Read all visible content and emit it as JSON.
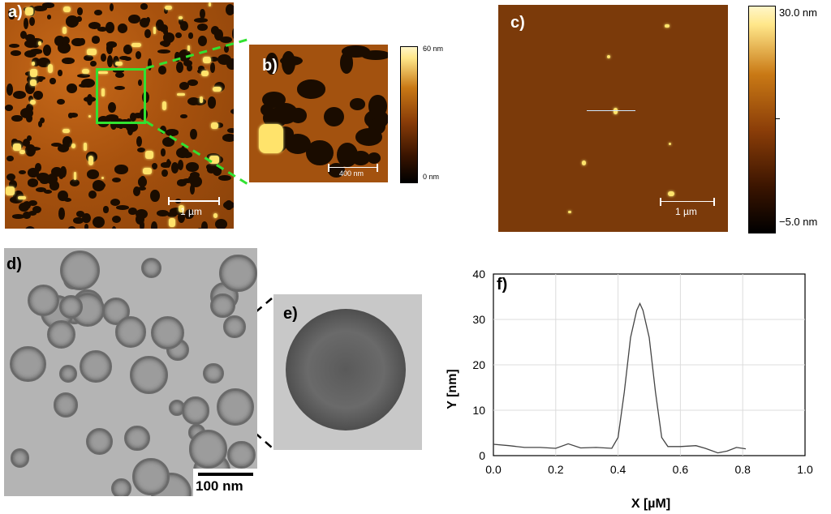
{
  "panels": {
    "a": {
      "label": "a)",
      "scale_label": "1 µm"
    },
    "b": {
      "label": "b)",
      "scale_label": "400 nm",
      "colorbar_max": "60 nm",
      "colorbar_min": "0 nm"
    },
    "c": {
      "label": "c)",
      "scale_label": "1 µm",
      "colorbar_max": "30.0 nm",
      "colorbar_min": "−5.0 nm"
    },
    "d": {
      "label": "d)",
      "scale_label": "100 nm"
    },
    "e": {
      "label": "e)"
    },
    "f": {
      "label": "f)"
    }
  },
  "chart_data": {
    "type": "line",
    "title": "",
    "xlabel": "X [µM]",
    "ylabel": "Y [nm]",
    "xlim": [
      0.0,
      1.0
    ],
    "ylim": [
      0,
      40
    ],
    "xticks": [
      "0.0",
      "0.2",
      "0.4",
      "0.6",
      "0.8",
      "1.0"
    ],
    "yticks": [
      "0",
      "10",
      "20",
      "30",
      "40"
    ],
    "grid": true,
    "x": [
      0.0,
      0.05,
      0.1,
      0.15,
      0.2,
      0.24,
      0.28,
      0.33,
      0.38,
      0.4,
      0.42,
      0.44,
      0.46,
      0.47,
      0.48,
      0.5,
      0.52,
      0.54,
      0.56,
      0.6,
      0.65,
      0.68,
      0.72,
      0.75,
      0.78,
      0.81
    ],
    "y": [
      2.5,
      2.2,
      1.8,
      1.8,
      1.6,
      2.6,
      1.7,
      1.8,
      1.6,
      4,
      14,
      26,
      32,
      33.5,
      32,
      26,
      14,
      4,
      2,
      2,
      2.2,
      1.6,
      0.6,
      1,
      1.8,
      1.5
    ]
  }
}
